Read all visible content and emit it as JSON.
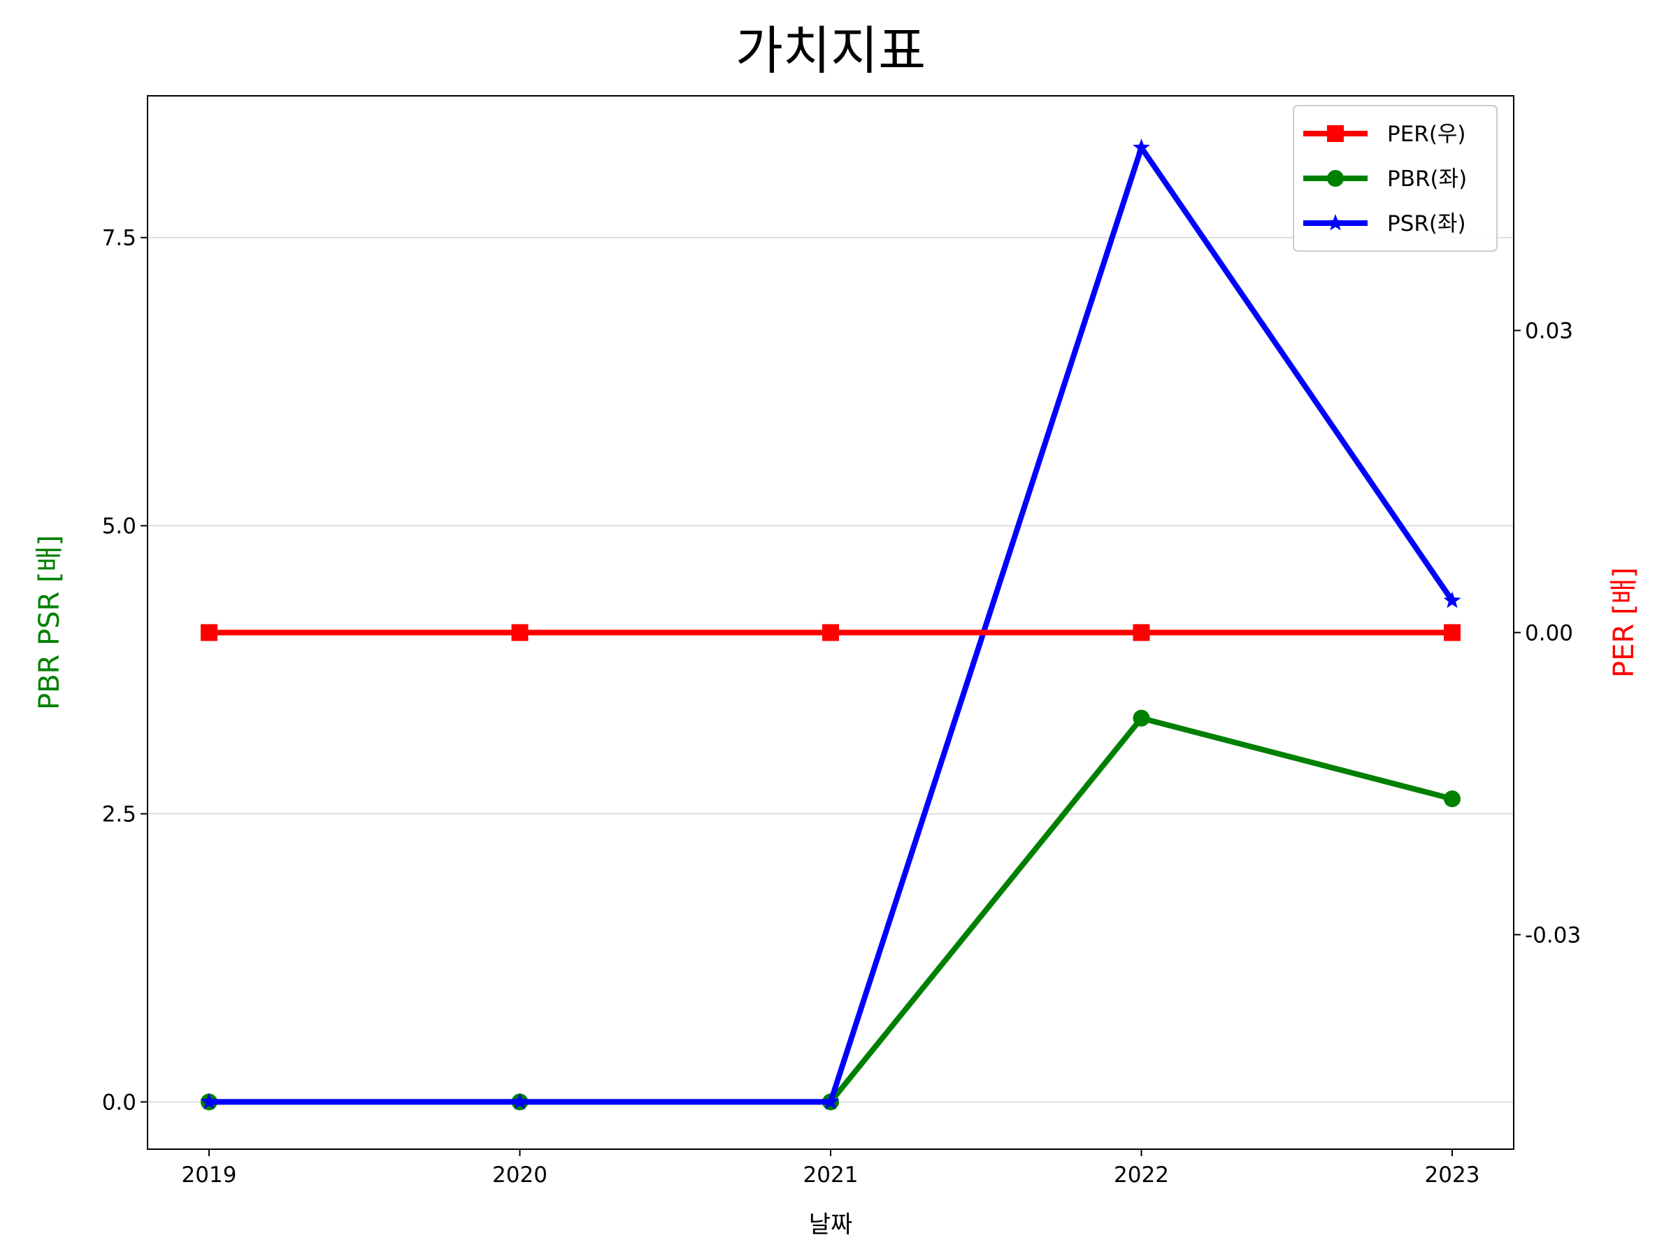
{
  "chart_data": {
    "type": "line",
    "title": "가치지표",
    "xlabel": "날짜",
    "ylabel_left": "PBR PSR [배]",
    "ylabel_right": "PER [배]",
    "categories": [
      "2019",
      "2020",
      "2021",
      "2022",
      "2023"
    ],
    "ylim_left": [
      -0.41,
      8.73
    ],
    "ylim_right": [
      -0.0513,
      0.0533
    ],
    "yticks_left": [
      "0.0",
      "2.5",
      "5.0",
      "7.5"
    ],
    "yticks_right": [
      "-0.03",
      "0.00",
      "0.03"
    ],
    "grid": "horizontal",
    "legend_position": "top-right",
    "colors": {
      "left_axis_label": "#008000",
      "right_axis_label": "#ff0000",
      "grid": "#d3d3d3"
    },
    "series": [
      {
        "name": "PER(우)",
        "axis": "right",
        "color": "#ff0000",
        "marker": "square",
        "values": [
          0,
          0,
          0,
          0,
          0
        ]
      },
      {
        "name": "PBR(좌)",
        "axis": "left",
        "color": "#008000",
        "marker": "circle",
        "values": [
          0.0,
          0.0,
          0.0,
          3.33,
          2.63
        ]
      },
      {
        "name": "PSR(좌)",
        "axis": "left",
        "color": "#0000ff",
        "marker": "star",
        "values": [
          0.0,
          0.0,
          0.0,
          8.28,
          4.35
        ]
      }
    ]
  }
}
